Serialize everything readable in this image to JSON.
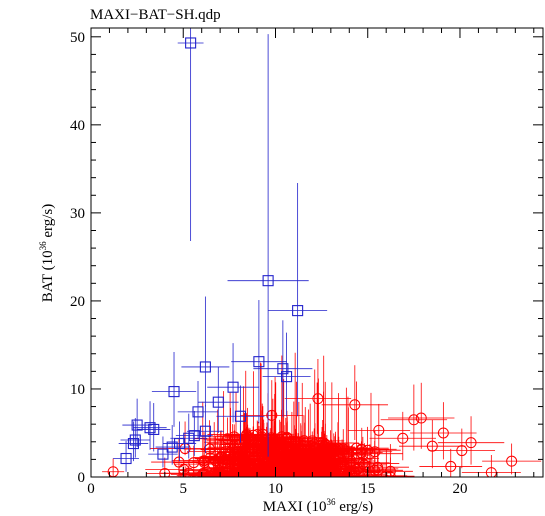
{
  "chart_data": {
    "type": "scatter",
    "title": "MAXI−BAT−SH.qdp",
    "xlabel_main": "MAXI (10",
    "xlabel_exp": "36",
    "xlabel_unit": " erg/s)",
    "ylabel_main": "BAT (10",
    "ylabel_exp": "36",
    "ylabel_unit": " erg/s)",
    "xlim": [
      0,
      24.5
    ],
    "ylim": [
      0,
      51
    ],
    "x_ticks": [
      0,
      5,
      10,
      15,
      20
    ],
    "y_ticks": [
      0,
      10,
      20,
      30,
      40,
      50
    ],
    "grid": false,
    "series": [
      {
        "marker": "square",
        "color": "#2222cc",
        "points": [
          {
            "x": 5.4,
            "y": 49.3,
            "xerr": 0.7,
            "yerr_lo": 22.5,
            "yerr_hi": 3.0
          },
          {
            "x": 9.6,
            "y": 22.3,
            "xerr": 2.2,
            "yerr_lo": 20.0,
            "yerr_hi": 28.0
          },
          {
            "x": 11.2,
            "y": 18.9,
            "xerr": 1.6,
            "yerr_lo": 12.0,
            "yerr_hi": 14.5
          },
          {
            "x": 9.1,
            "y": 13.1,
            "xerr": 1.5,
            "yerr_lo": 7.0,
            "yerr_hi": 7.0
          },
          {
            "x": 6.2,
            "y": 12.5,
            "xerr": 1.3,
            "yerr_lo": 4.5,
            "yerr_hi": 8.0
          },
          {
            "x": 10.4,
            "y": 12.3,
            "xerr": 1.6,
            "yerr_lo": 5.5,
            "yerr_hi": 5.5
          },
          {
            "x": 10.6,
            "y": 11.4,
            "xerr": 1.3,
            "yerr_lo": 4.5,
            "yerr_hi": 5.0
          },
          {
            "x": 7.7,
            "y": 10.2,
            "xerr": 1.4,
            "yerr_lo": 4.0,
            "yerr_hi": 5.0
          },
          {
            "x": 4.5,
            "y": 9.7,
            "xerr": 1.2,
            "yerr_lo": 4.0,
            "yerr_hi": 4.5
          },
          {
            "x": 6.9,
            "y": 8.5,
            "xerr": 1.1,
            "yerr_lo": 3.5,
            "yerr_hi": 4.0
          },
          {
            "x": 5.8,
            "y": 7.4,
            "xerr": 1.1,
            "yerr_lo": 3.0,
            "yerr_hi": 3.5
          },
          {
            "x": 8.1,
            "y": 6.9,
            "xerr": 1.3,
            "yerr_lo": 3.0,
            "yerr_hi": 3.5
          },
          {
            "x": 2.5,
            "y": 5.9,
            "xerr": 0.8,
            "yerr_lo": 2.5,
            "yerr_hi": 3.0
          },
          {
            "x": 3.2,
            "y": 5.6,
            "xerr": 0.9,
            "yerr_lo": 2.5,
            "yerr_hi": 3.0
          },
          {
            "x": 3.4,
            "y": 5.4,
            "xerr": 0.9,
            "yerr_lo": 2.5,
            "yerr_hi": 3.0
          },
          {
            "x": 6.2,
            "y": 5.2,
            "xerr": 1.0,
            "yerr_lo": 2.5,
            "yerr_hi": 3.0
          },
          {
            "x": 5.6,
            "y": 4.7,
            "xerr": 1.0,
            "yerr_lo": 2.3,
            "yerr_hi": 2.8
          },
          {
            "x": 5.3,
            "y": 4.4,
            "xerr": 1.0,
            "yerr_lo": 2.3,
            "yerr_hi": 2.8
          },
          {
            "x": 2.4,
            "y": 4.2,
            "xerr": 0.8,
            "yerr_lo": 2.0,
            "yerr_hi": 2.5
          },
          {
            "x": 2.3,
            "y": 3.8,
            "xerr": 0.8,
            "yerr_lo": 2.0,
            "yerr_hi": 2.5
          },
          {
            "x": 4.8,
            "y": 3.8,
            "xerr": 0.9,
            "yerr_lo": 2.0,
            "yerr_hi": 2.5
          },
          {
            "x": 4.4,
            "y": 3.4,
            "xerr": 0.9,
            "yerr_lo": 2.0,
            "yerr_hi": 2.5
          },
          {
            "x": 1.9,
            "y": 2.1,
            "xerr": 0.7,
            "yerr_lo": 1.5,
            "yerr_hi": 2.0
          },
          {
            "x": 3.9,
            "y": 2.6,
            "xerr": 0.8,
            "yerr_lo": 1.5,
            "yerr_hi": 2.0
          }
        ]
      },
      {
        "marker": "circle",
        "color": "#ff0000",
        "points": [
          {
            "x": 12.3,
            "y": 8.9,
            "xerr": 1.8,
            "yerr_lo": 4.0,
            "yerr_hi": 4.5
          },
          {
            "x": 14.3,
            "y": 8.2,
            "xerr": 1.8,
            "yerr_lo": 4.0,
            "yerr_hi": 4.5
          },
          {
            "x": 17.9,
            "y": 6.7,
            "xerr": 1.8,
            "yerr_lo": 3.5,
            "yerr_hi": 4.0
          },
          {
            "x": 17.5,
            "y": 6.5,
            "xerr": 1.8,
            "yerr_lo": 3.5,
            "yerr_hi": 4.0
          },
          {
            "x": 9.8,
            "y": 7.0,
            "xerr": 1.7,
            "yerr_lo": 3.5,
            "yerr_hi": 4.0
          },
          {
            "x": 19.1,
            "y": 5.0,
            "xerr": 1.8,
            "yerr_lo": 3.0,
            "yerr_hi": 3.5
          },
          {
            "x": 16.9,
            "y": 4.4,
            "xerr": 1.8,
            "yerr_lo": 2.5,
            "yerr_hi": 3.0
          },
          {
            "x": 15.6,
            "y": 5.3,
            "xerr": 1.7,
            "yerr_lo": 2.5,
            "yerr_hi": 3.0
          },
          {
            "x": 20.6,
            "y": 3.9,
            "xerr": 1.8,
            "yerr_lo": 2.5,
            "yerr_hi": 3.0
          },
          {
            "x": 18.5,
            "y": 3.5,
            "xerr": 1.8,
            "yerr_lo": 2.5,
            "yerr_hi": 3.0
          },
          {
            "x": 20.1,
            "y": 3.0,
            "xerr": 1.8,
            "yerr_lo": 2.0,
            "yerr_hi": 2.5
          },
          {
            "x": 22.8,
            "y": 1.8,
            "xerr": 1.6,
            "yerr_lo": 1.5,
            "yerr_hi": 2.0
          },
          {
            "x": 21.7,
            "y": 0.5,
            "xerr": 1.6,
            "yerr_lo": 0.5,
            "yerr_hi": 2.0
          },
          {
            "x": 19.5,
            "y": 1.2,
            "xerr": 1.7,
            "yerr_lo": 1.2,
            "yerr_hi": 2.0
          },
          {
            "x": 1.2,
            "y": 0.6,
            "xerr": 0.6,
            "yerr_lo": 0.6,
            "yerr_hi": 1.5
          },
          {
            "x": 4.0,
            "y": 0.4,
            "xerr": 1.0,
            "yerr_lo": 0.4,
            "yerr_hi": 1.8
          }
        ]
      }
    ],
    "red_cluster": {
      "x_range": [
        2.5,
        19.5
      ],
      "peak_x": 9.0,
      "y_max_at_peak": 5.0,
      "count": 440
    }
  }
}
